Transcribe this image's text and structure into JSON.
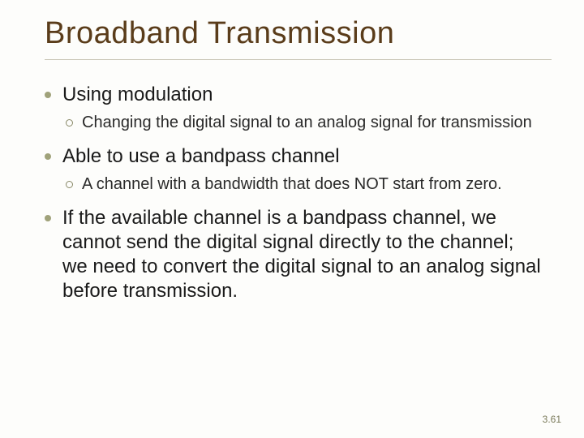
{
  "title": "Broadband Transmission",
  "bullets": [
    {
      "text": "Using modulation",
      "sub": [
        "Changing the digital signal to an analog signal for transmission"
      ]
    },
    {
      "text": "Able to use a bandpass channel",
      "sub": [
        "A channel with a bandwidth that does NOT start from zero."
      ]
    },
    {
      "text": "If the available channel is a bandpass channel, we cannot send the digital signal directly to the channel;\nwe need to convert the digital signal to an analog signal before transmission.",
      "sub": []
    }
  ],
  "pageNumber": "3.61",
  "colors": {
    "title": "#5a3c1a",
    "bullet": "#a0a27a",
    "subbullet_border": "#888866",
    "divider": "#c9c5b5",
    "background": "#fdfdfb",
    "pagenum": "#7a7a5a"
  },
  "fonts": {
    "title_size_pt": 38,
    "bullet_size_pt": 24,
    "sub_size_pt": 20,
    "pagenum_size_pt": 12
  }
}
